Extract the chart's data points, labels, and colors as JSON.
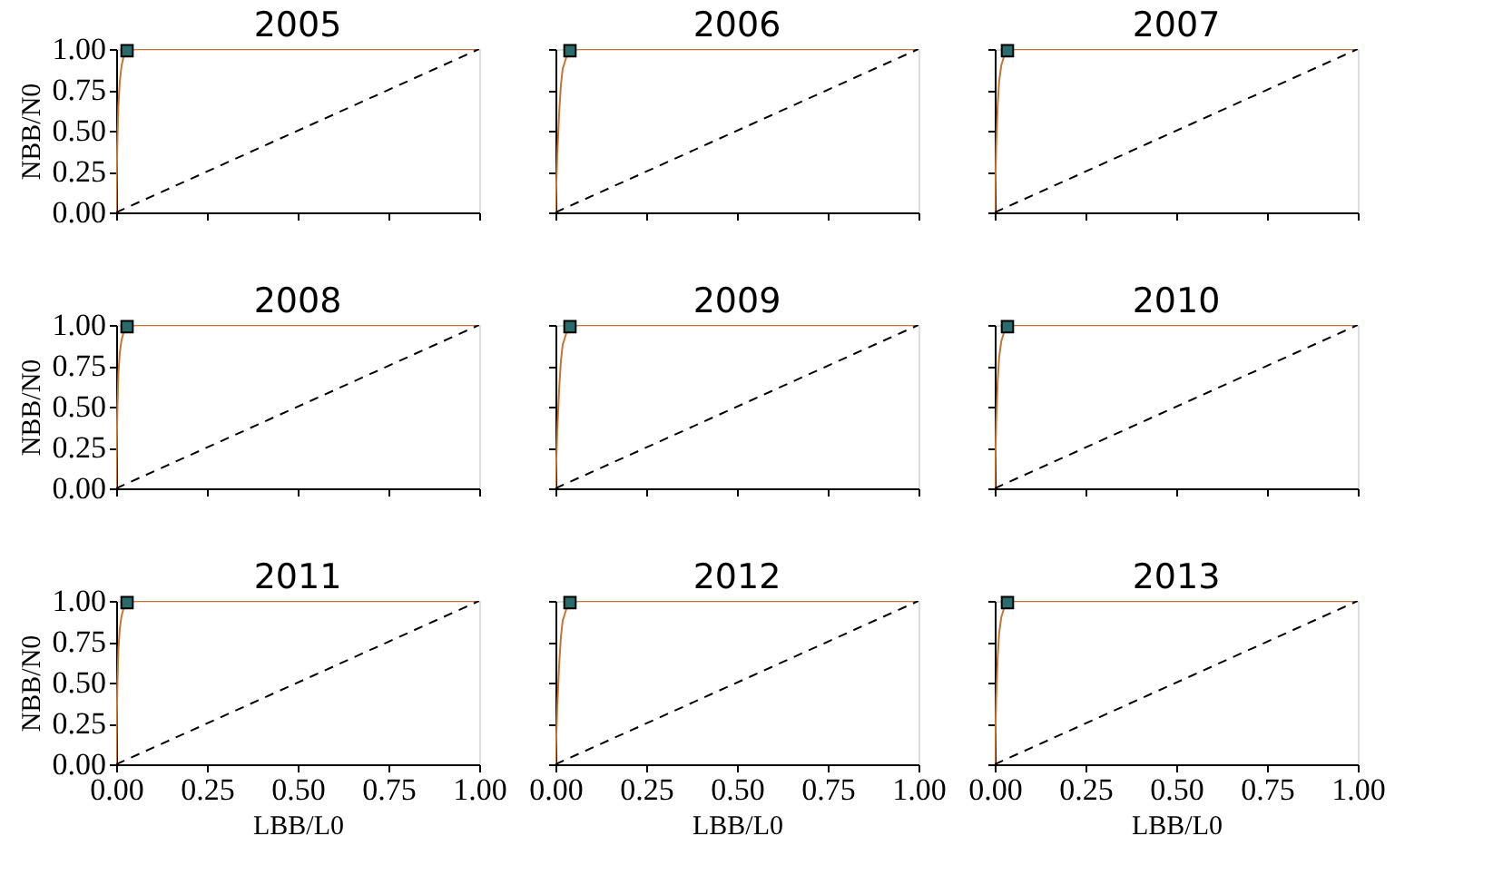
{
  "chart_data": [
    {
      "type": "line",
      "title": "2005",
      "ylabel": "NBB/N0",
      "xlim": [
        0,
        1
      ],
      "ylim": [
        0,
        1
      ],
      "xticks": [
        0,
        0.25,
        0.5,
        0.75,
        1
      ],
      "yticks": [
        {
          "value": 0,
          "label": "0.00"
        },
        {
          "value": 0.25,
          "label": "0.25"
        },
        {
          "value": 0.5,
          "label": "0.50"
        },
        {
          "value": 0.75,
          "label": "0.75"
        },
        {
          "value": 1,
          "label": "1.00"
        }
      ],
      "tick_labels": "y",
      "grid": false,
      "series": [
        {
          "color": "#c87533",
          "x": [
            0,
            0.003,
            0.006,
            0.01,
            0.015,
            0.02,
            0.03,
            0.05,
            1
          ],
          "values": [
            0,
            0.4,
            0.65,
            0.8,
            0.9,
            0.95,
            0.98,
            1,
            1
          ]
        },
        {
          "color": "#000000",
          "line_style": "dashed",
          "x": [
            0,
            1
          ],
          "values": [
            0,
            1
          ]
        },
        {
          "type": "scatter",
          "color": "#2a6b6b",
          "marker": "square",
          "x": [
            0.03
          ],
          "values": [
            0.99
          ]
        }
      ]
    },
    {
      "type": "line",
      "title": "2006",
      "xlim": [
        0,
        1
      ],
      "ylim": [
        0,
        1
      ],
      "xticks": [
        0,
        0.25,
        0.5,
        0.75,
        1
      ],
      "yticks": [
        0,
        0.25,
        0.5,
        0.75,
        1
      ],
      "tick_labels": false,
      "grid": false,
      "series": [
        {
          "color": "#c87533",
          "x": [
            0,
            0.005,
            0.01,
            0.015,
            0.02,
            0.03,
            0.04,
            0.06,
            1
          ],
          "values": [
            0,
            0.35,
            0.6,
            0.78,
            0.88,
            0.95,
            0.98,
            1,
            1
          ]
        },
        {
          "color": "#000000",
          "line_style": "dashed",
          "x": [
            0,
            1
          ],
          "values": [
            0,
            1
          ]
        },
        {
          "type": "scatter",
          "color": "#2a6b6b",
          "marker": "square",
          "x": [
            0.04
          ],
          "values": [
            0.99
          ]
        }
      ]
    },
    {
      "type": "line",
      "title": "2007",
      "xlim": [
        0,
        1
      ],
      "ylim": [
        0,
        1
      ],
      "xticks": [
        0,
        0.25,
        0.5,
        0.75,
        1
      ],
      "yticks": [
        0,
        0.25,
        0.5,
        0.75,
        1
      ],
      "tick_labels": false,
      "grid": false,
      "series": [
        {
          "color": "#c87533",
          "x": [
            0,
            0.004,
            0.008,
            0.012,
            0.018,
            0.025,
            0.035,
            0.05,
            1
          ],
          "values": [
            0,
            0.4,
            0.65,
            0.8,
            0.9,
            0.95,
            0.98,
            1,
            1
          ]
        },
        {
          "color": "#000000",
          "line_style": "dashed",
          "x": [
            0,
            1
          ],
          "values": [
            0,
            1
          ]
        },
        {
          "type": "scatter",
          "color": "#2a6b6b",
          "marker": "square",
          "x": [
            0.035
          ],
          "values": [
            0.99
          ]
        }
      ]
    },
    {
      "type": "line",
      "title": "2008",
      "ylabel": "NBB/N0",
      "xlim": [
        0,
        1
      ],
      "ylim": [
        0,
        1
      ],
      "xticks": [
        0,
        0.25,
        0.5,
        0.75,
        1
      ],
      "yticks": [
        {
          "value": 0,
          "label": "0.00"
        },
        {
          "value": 0.25,
          "label": "0.25"
        },
        {
          "value": 0.5,
          "label": "0.50"
        },
        {
          "value": 0.75,
          "label": "0.75"
        },
        {
          "value": 1,
          "label": "1.00"
        }
      ],
      "tick_labels": "y",
      "grid": false,
      "series": [
        {
          "color": "#c87533",
          "x": [
            0,
            0.003,
            0.006,
            0.01,
            0.015,
            0.02,
            0.03,
            0.05,
            1
          ],
          "values": [
            0,
            0.45,
            0.7,
            0.83,
            0.91,
            0.95,
            0.98,
            1,
            1
          ]
        },
        {
          "color": "#000000",
          "line_style": "dashed",
          "x": [
            0,
            1
          ],
          "values": [
            0,
            1
          ]
        },
        {
          "type": "scatter",
          "color": "#2a6b6b",
          "marker": "square",
          "x": [
            0.03
          ],
          "values": [
            0.99
          ]
        }
      ]
    },
    {
      "type": "line",
      "title": "2009",
      "xlim": [
        0,
        1
      ],
      "ylim": [
        0,
        1
      ],
      "xticks": [
        0,
        0.25,
        0.5,
        0.75,
        1
      ],
      "yticks": [
        0,
        0.25,
        0.5,
        0.75,
        1
      ],
      "tick_labels": false,
      "grid": false,
      "series": [
        {
          "color": "#c87533",
          "x": [
            0,
            0.005,
            0.01,
            0.015,
            0.02,
            0.03,
            0.04,
            0.06,
            1
          ],
          "values": [
            0,
            0.35,
            0.6,
            0.78,
            0.88,
            0.95,
            0.98,
            1,
            1
          ]
        },
        {
          "color": "#000000",
          "line_style": "dashed",
          "x": [
            0,
            1
          ],
          "values": [
            0,
            1
          ]
        },
        {
          "type": "scatter",
          "color": "#2a6b6b",
          "marker": "square",
          "x": [
            0.04
          ],
          "values": [
            0.99
          ]
        }
      ]
    },
    {
      "type": "line",
      "title": "2010",
      "xlim": [
        0,
        1
      ],
      "ylim": [
        0,
        1
      ],
      "xticks": [
        0,
        0.25,
        0.5,
        0.75,
        1
      ],
      "yticks": [
        0,
        0.25,
        0.5,
        0.75,
        1
      ],
      "tick_labels": false,
      "grid": false,
      "series": [
        {
          "color": "#c87533",
          "x": [
            0,
            0.004,
            0.008,
            0.012,
            0.018,
            0.025,
            0.035,
            0.05,
            1
          ],
          "values": [
            0,
            0.4,
            0.65,
            0.8,
            0.9,
            0.95,
            0.98,
            1,
            1
          ]
        },
        {
          "color": "#000000",
          "line_style": "dashed",
          "x": [
            0,
            1
          ],
          "values": [
            0,
            1
          ]
        },
        {
          "type": "scatter",
          "color": "#2a6b6b",
          "marker": "square",
          "x": [
            0.035
          ],
          "values": [
            0.99
          ]
        }
      ]
    },
    {
      "type": "line",
      "title": "2011",
      "ylabel": "NBB/N0",
      "xlabel": "LBB/L0",
      "xlim": [
        0,
        1
      ],
      "ylim": [
        0,
        1
      ],
      "xticks": [
        {
          "value": 0,
          "label": "0.00"
        },
        {
          "value": 0.25,
          "label": "0.25"
        },
        {
          "value": 0.5,
          "label": "0.50"
        },
        {
          "value": 0.75,
          "label": "0.75"
        },
        {
          "value": 1,
          "label": "1.00"
        }
      ],
      "yticks": [
        {
          "value": 0,
          "label": "0.00"
        },
        {
          "value": 0.25,
          "label": "0.25"
        },
        {
          "value": 0.5,
          "label": "0.50"
        },
        {
          "value": 0.75,
          "label": "0.75"
        },
        {
          "value": 1,
          "label": "1.00"
        }
      ],
      "grid": false,
      "series": [
        {
          "color": "#c87533",
          "x": [
            0,
            0.003,
            0.006,
            0.01,
            0.015,
            0.02,
            0.03,
            0.05,
            1
          ],
          "values": [
            0,
            0.45,
            0.7,
            0.83,
            0.91,
            0.95,
            0.98,
            1,
            1
          ]
        },
        {
          "color": "#000000",
          "line_style": "dashed",
          "x": [
            0,
            1
          ],
          "values": [
            0,
            1
          ]
        },
        {
          "type": "scatter",
          "color": "#2a6b6b",
          "marker": "square",
          "x": [
            0.03
          ],
          "values": [
            0.99
          ]
        }
      ]
    },
    {
      "type": "line",
      "title": "2012",
      "xlabel": "LBB/L0",
      "xlim": [
        0,
        1
      ],
      "ylim": [
        0,
        1
      ],
      "xticks": [
        {
          "value": 0,
          "label": "0.00"
        },
        {
          "value": 0.25,
          "label": "0.25"
        },
        {
          "value": 0.5,
          "label": "0.50"
        },
        {
          "value": 0.75,
          "label": "0.75"
        },
        {
          "value": 1,
          "label": "1.00"
        }
      ],
      "yticks": [
        0,
        0.25,
        0.5,
        0.75,
        1
      ],
      "tick_labels": "x",
      "grid": false,
      "series": [
        {
          "color": "#c87533",
          "x": [
            0,
            0.005,
            0.01,
            0.015,
            0.02,
            0.03,
            0.04,
            0.06,
            1
          ],
          "values": [
            0,
            0.35,
            0.6,
            0.78,
            0.88,
            0.95,
            0.98,
            1,
            1
          ]
        },
        {
          "color": "#000000",
          "line_style": "dashed",
          "x": [
            0,
            1
          ],
          "values": [
            0,
            1
          ]
        },
        {
          "type": "scatter",
          "color": "#2a6b6b",
          "marker": "square",
          "x": [
            0.04
          ],
          "values": [
            0.99
          ]
        }
      ]
    },
    {
      "type": "line",
      "title": "2013",
      "xlabel": "LBB/L0",
      "xlim": [
        0,
        1
      ],
      "ylim": [
        0,
        1
      ],
      "xticks": [
        {
          "value": 0,
          "label": "0.00"
        },
        {
          "value": 0.25,
          "label": "0.25"
        },
        {
          "value": 0.5,
          "label": "0.50"
        },
        {
          "value": 0.75,
          "label": "0.75"
        },
        {
          "value": 1,
          "label": "1.00"
        }
      ],
      "yticks": [
        0,
        0.25,
        0.5,
        0.75,
        1
      ],
      "tick_labels": "x",
      "grid": false,
      "series": [
        {
          "color": "#c87533",
          "x": [
            0,
            0.004,
            0.008,
            0.012,
            0.018,
            0.025,
            0.035,
            0.05,
            1
          ],
          "values": [
            0,
            0.4,
            0.65,
            0.8,
            0.9,
            0.95,
            0.98,
            1,
            1
          ]
        },
        {
          "color": "#000000",
          "line_style": "dashed",
          "x": [
            0,
            1
          ],
          "values": [
            0,
            1
          ]
        },
        {
          "type": "scatter",
          "color": "#2a6b6b",
          "marker": "square",
          "x": [
            0.035
          ],
          "values": [
            0.99
          ]
        }
      ]
    }
  ]
}
